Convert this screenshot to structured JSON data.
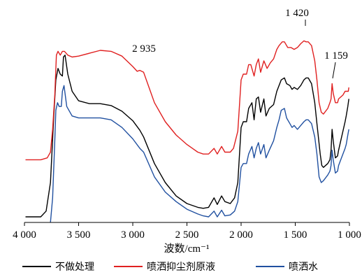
{
  "chart_data": {
    "type": "line",
    "xlabel": "波数/cm⁻¹",
    "ylabel": "",
    "xlim": [
      4000,
      1000
    ],
    "x_reversed": true,
    "x_ticks": [
      4000,
      3500,
      3000,
      2500,
      2000,
      1500,
      1000
    ],
    "x_tick_labels": [
      "4 000",
      "3 500",
      "3 000",
      "2 500",
      "2 000",
      "1 500",
      "1 000"
    ],
    "y_axis_visible": false,
    "grid": false,
    "legend_position": "bottom",
    "annotations": [
      {
        "text": "2 935",
        "x": 2935
      },
      {
        "text": "1 420",
        "x": 1420
      },
      {
        "text": "1 159",
        "x": 1159
      }
    ],
    "series": [
      {
        "name": "不做处理",
        "color": "#000000",
        "points": [
          [
            3990,
            0.0
          ],
          [
            3900,
            0.0
          ],
          [
            3850,
            0.0
          ],
          [
            3800,
            0.03
          ],
          [
            3760,
            0.18
          ],
          [
            3730,
            0.52
          ],
          [
            3710,
            0.72
          ],
          [
            3690,
            0.78
          ],
          [
            3670,
            0.75
          ],
          [
            3650,
            0.74
          ],
          [
            3640,
            0.84
          ],
          [
            3625,
            0.85
          ],
          [
            3600,
            0.75
          ],
          [
            3560,
            0.66
          ],
          [
            3500,
            0.61
          ],
          [
            3400,
            0.595
          ],
          [
            3300,
            0.595
          ],
          [
            3200,
            0.585
          ],
          [
            3100,
            0.555
          ],
          [
            3000,
            0.505
          ],
          [
            2935,
            0.455
          ],
          [
            2900,
            0.42
          ],
          [
            2800,
            0.28
          ],
          [
            2700,
            0.18
          ],
          [
            2600,
            0.11
          ],
          [
            2500,
            0.07
          ],
          [
            2400,
            0.05
          ],
          [
            2350,
            0.045
          ],
          [
            2300,
            0.05
          ],
          [
            2250,
            0.1
          ],
          [
            2220,
            0.065
          ],
          [
            2180,
            0.11
          ],
          [
            2150,
            0.08
          ],
          [
            2100,
            0.07
          ],
          [
            2060,
            0.1
          ],
          [
            2030,
            0.18
          ],
          [
            2000,
            0.47
          ],
          [
            1980,
            0.5
          ],
          [
            1950,
            0.5
          ],
          [
            1930,
            0.57
          ],
          [
            1900,
            0.6
          ],
          [
            1880,
            0.51
          ],
          [
            1860,
            0.62
          ],
          [
            1840,
            0.63
          ],
          [
            1820,
            0.55
          ],
          [
            1790,
            0.62
          ],
          [
            1770,
            0.53
          ],
          [
            1740,
            0.57
          ],
          [
            1700,
            0.59
          ],
          [
            1670,
            0.66
          ],
          [
            1650,
            0.69
          ],
          [
            1630,
            0.72
          ],
          [
            1600,
            0.73
          ],
          [
            1580,
            0.7
          ],
          [
            1550,
            0.69
          ],
          [
            1530,
            0.67
          ],
          [
            1510,
            0.68
          ],
          [
            1480,
            0.67
          ],
          [
            1450,
            0.69
          ],
          [
            1420,
            0.72
          ],
          [
            1400,
            0.73
          ],
          [
            1380,
            0.73
          ],
          [
            1350,
            0.7
          ],
          [
            1320,
            0.6
          ],
          [
            1300,
            0.49
          ],
          [
            1270,
            0.33
          ],
          [
            1255,
            0.27
          ],
          [
            1240,
            0.26
          ],
          [
            1200,
            0.28
          ],
          [
            1180,
            0.3
          ],
          [
            1170,
            0.35
          ],
          [
            1160,
            0.46
          ],
          [
            1150,
            0.4
          ],
          [
            1130,
            0.31
          ],
          [
            1110,
            0.32
          ],
          [
            1100,
            0.35
          ],
          [
            1080,
            0.4
          ],
          [
            1060,
            0.45
          ],
          [
            1040,
            0.5
          ],
          [
            1030,
            0.53
          ],
          [
            1015,
            0.58
          ],
          [
            1005,
            0.62
          ]
        ]
      },
      {
        "name": "喷洒抑尘剂原液",
        "color": "#e02020",
        "points": [
          [
            3990,
            0.3
          ],
          [
            3850,
            0.3
          ],
          [
            3790,
            0.31
          ],
          [
            3760,
            0.34
          ],
          [
            3740,
            0.46
          ],
          [
            3720,
            0.64
          ],
          [
            3705,
            0.85
          ],
          [
            3690,
            0.87
          ],
          [
            3670,
            0.85
          ],
          [
            3650,
            0.87
          ],
          [
            3630,
            0.87
          ],
          [
            3600,
            0.85
          ],
          [
            3560,
            0.84
          ],
          [
            3500,
            0.845
          ],
          [
            3400,
            0.86
          ],
          [
            3300,
            0.875
          ],
          [
            3200,
            0.87
          ],
          [
            3100,
            0.845
          ],
          [
            3000,
            0.79
          ],
          [
            2960,
            0.765
          ],
          [
            2935,
            0.77
          ],
          [
            2900,
            0.76
          ],
          [
            2800,
            0.6
          ],
          [
            2700,
            0.5
          ],
          [
            2600,
            0.43
          ],
          [
            2500,
            0.38
          ],
          [
            2450,
            0.36
          ],
          [
            2400,
            0.34
          ],
          [
            2350,
            0.33
          ],
          [
            2300,
            0.33
          ],
          [
            2250,
            0.36
          ],
          [
            2220,
            0.33
          ],
          [
            2180,
            0.37
          ],
          [
            2150,
            0.34
          ],
          [
            2100,
            0.34
          ],
          [
            2070,
            0.36
          ],
          [
            2030,
            0.45
          ],
          [
            2000,
            0.72
          ],
          [
            1980,
            0.75
          ],
          [
            1950,
            0.75
          ],
          [
            1930,
            0.8
          ],
          [
            1910,
            0.8
          ],
          [
            1880,
            0.74
          ],
          [
            1860,
            0.8
          ],
          [
            1840,
            0.83
          ],
          [
            1820,
            0.76
          ],
          [
            1790,
            0.82
          ],
          [
            1760,
            0.78
          ],
          [
            1730,
            0.81
          ],
          [
            1700,
            0.83
          ],
          [
            1670,
            0.88
          ],
          [
            1650,
            0.9
          ],
          [
            1620,
            0.92
          ],
          [
            1600,
            0.92
          ],
          [
            1570,
            0.89
          ],
          [
            1540,
            0.89
          ],
          [
            1510,
            0.88
          ],
          [
            1480,
            0.89
          ],
          [
            1450,
            0.91
          ],
          [
            1420,
            0.925
          ],
          [
            1400,
            0.92
          ],
          [
            1380,
            0.92
          ],
          [
            1350,
            0.9
          ],
          [
            1320,
            0.82
          ],
          [
            1300,
            0.72
          ],
          [
            1280,
            0.6
          ],
          [
            1260,
            0.55
          ],
          [
            1240,
            0.54
          ],
          [
            1200,
            0.57
          ],
          [
            1180,
            0.6
          ],
          [
            1170,
            0.62
          ],
          [
            1160,
            0.7
          ],
          [
            1150,
            0.65
          ],
          [
            1130,
            0.6
          ],
          [
            1110,
            0.6
          ],
          [
            1100,
            0.62
          ],
          [
            1080,
            0.63
          ],
          [
            1060,
            0.64
          ],
          [
            1040,
            0.66
          ],
          [
            1020,
            0.66
          ],
          [
            1010,
            0.66
          ],
          [
            1005,
            0.68
          ]
        ]
      },
      {
        "name": "喷洒水",
        "color": "#2050a0",
        "points": [
          [
            3760,
            -0.05
          ],
          [
            3740,
            0.1
          ],
          [
            3720,
            0.4
          ],
          [
            3710,
            0.56
          ],
          [
            3695,
            0.6
          ],
          [
            3680,
            0.58
          ],
          [
            3660,
            0.58
          ],
          [
            3650,
            0.66
          ],
          [
            3635,
            0.69
          ],
          [
            3610,
            0.58
          ],
          [
            3560,
            0.53
          ],
          [
            3500,
            0.52
          ],
          [
            3400,
            0.52
          ],
          [
            3300,
            0.52
          ],
          [
            3200,
            0.51
          ],
          [
            3100,
            0.47
          ],
          [
            3000,
            0.41
          ],
          [
            2935,
            0.36
          ],
          [
            2900,
            0.34
          ],
          [
            2800,
            0.21
          ],
          [
            2700,
            0.13
          ],
          [
            2600,
            0.08
          ],
          [
            2500,
            0.04
          ],
          [
            2400,
            0.015
          ],
          [
            2350,
            0.005
          ],
          [
            2300,
            0.0
          ],
          [
            2250,
            0.03
          ],
          [
            2220,
            0.0
          ],
          [
            2180,
            0.035
          ],
          [
            2150,
            0.005
          ],
          [
            2100,
            0.01
          ],
          [
            2060,
            0.03
          ],
          [
            2030,
            0.08
          ],
          [
            2000,
            0.26
          ],
          [
            1980,
            0.28
          ],
          [
            1950,
            0.28
          ],
          [
            1930,
            0.33
          ],
          [
            1900,
            0.37
          ],
          [
            1880,
            0.31
          ],
          [
            1860,
            0.36
          ],
          [
            1840,
            0.39
          ],
          [
            1820,
            0.33
          ],
          [
            1790,
            0.38
          ],
          [
            1770,
            0.31
          ],
          [
            1740,
            0.35
          ],
          [
            1700,
            0.4
          ],
          [
            1670,
            0.47
          ],
          [
            1650,
            0.51
          ],
          [
            1630,
            0.56
          ],
          [
            1600,
            0.57
          ],
          [
            1580,
            0.52
          ],
          [
            1550,
            0.49
          ],
          [
            1530,
            0.47
          ],
          [
            1510,
            0.48
          ],
          [
            1480,
            0.46
          ],
          [
            1450,
            0.48
          ],
          [
            1420,
            0.5
          ],
          [
            1400,
            0.51
          ],
          [
            1380,
            0.51
          ],
          [
            1350,
            0.49
          ],
          [
            1320,
            0.42
          ],
          [
            1300,
            0.33
          ],
          [
            1280,
            0.21
          ],
          [
            1260,
            0.18
          ],
          [
            1240,
            0.19
          ],
          [
            1200,
            0.22
          ],
          [
            1180,
            0.24
          ],
          [
            1170,
            0.27
          ],
          [
            1160,
            0.35
          ],
          [
            1150,
            0.3
          ],
          [
            1130,
            0.23
          ],
          [
            1110,
            0.24
          ],
          [
            1100,
            0.27
          ],
          [
            1080,
            0.3
          ],
          [
            1060,
            0.33
          ],
          [
            1040,
            0.36
          ],
          [
            1030,
            0.38
          ],
          [
            1015,
            0.43
          ],
          [
            1005,
            0.46
          ]
        ]
      }
    ]
  }
}
